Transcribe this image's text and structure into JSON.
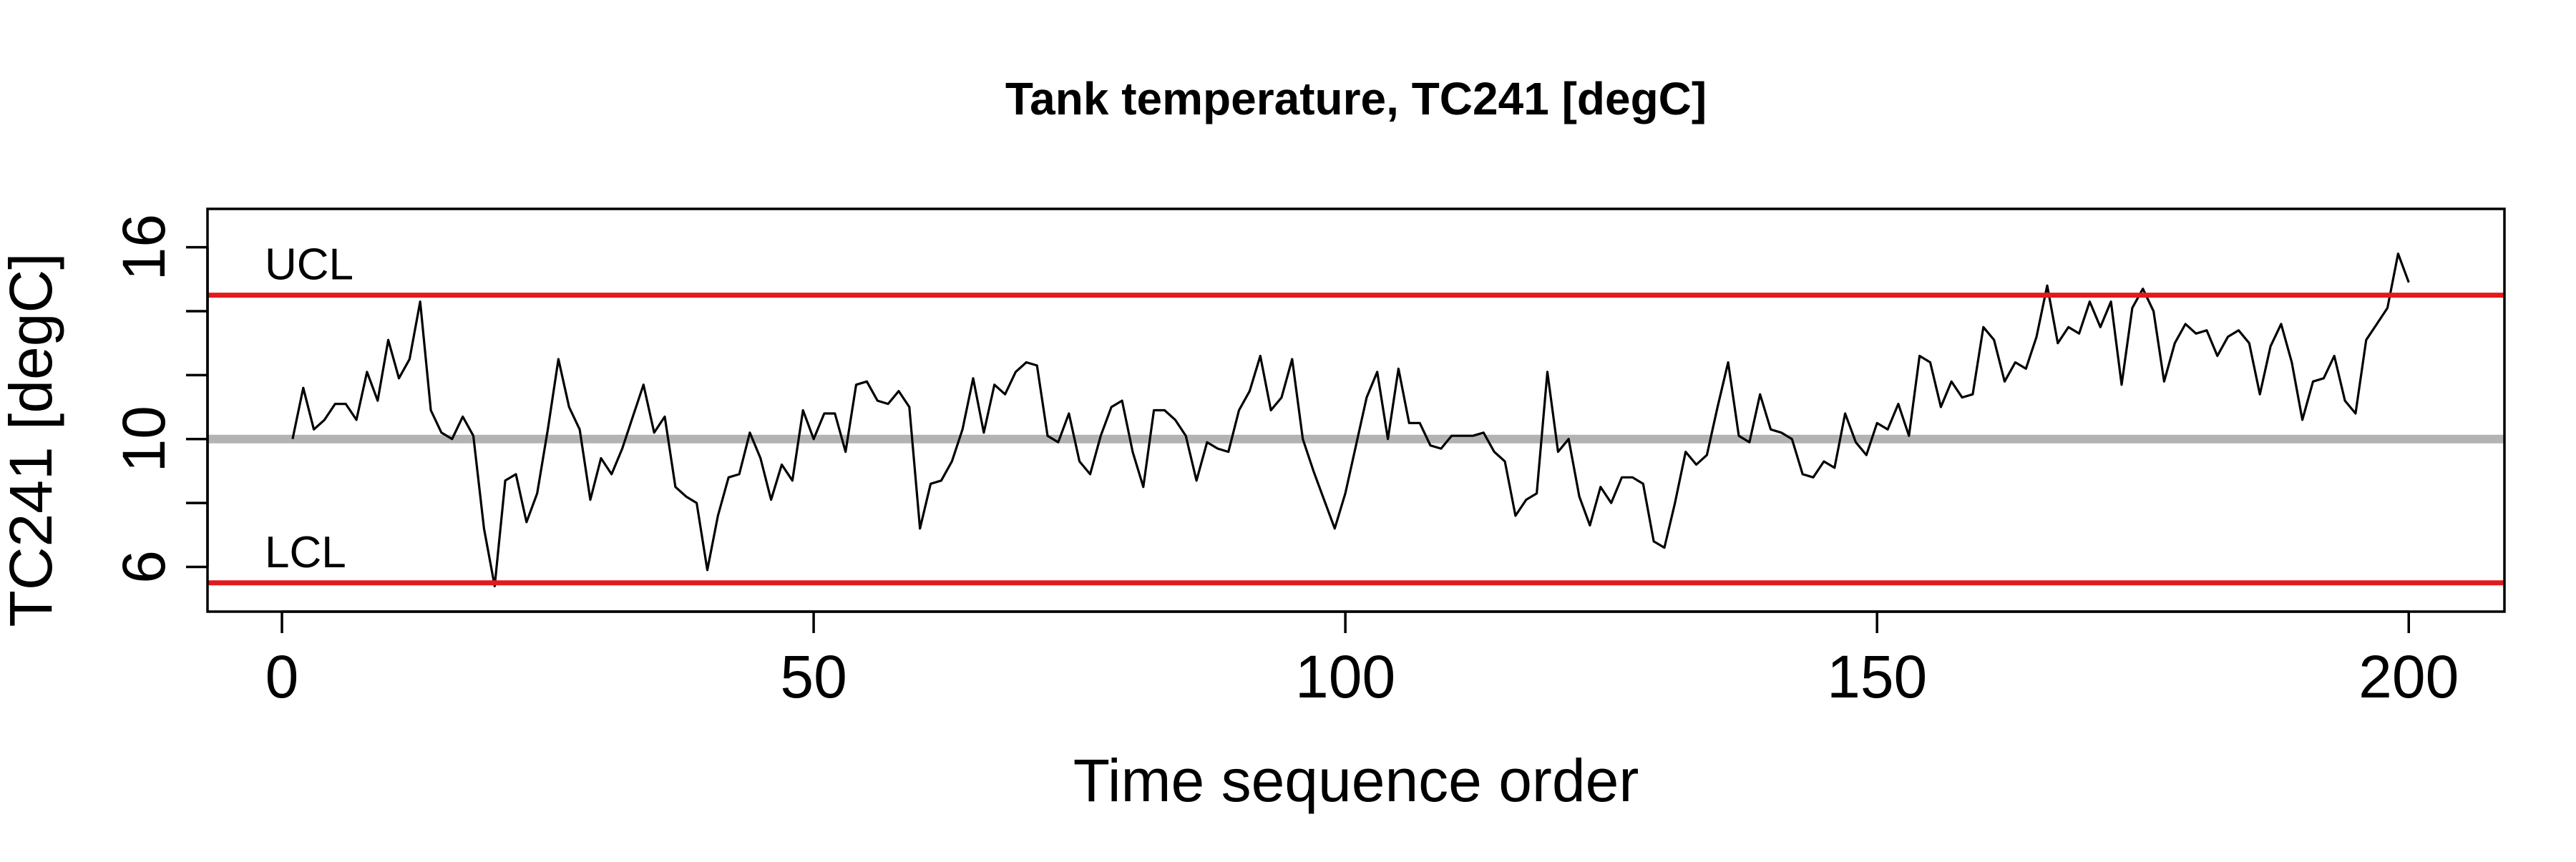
{
  "chart_data": {
    "type": "line",
    "title": "Tank temperature, TC241 [degC]",
    "xlabel": "Time sequence order",
    "ylabel": "TC241 [degC]",
    "xlim": [
      -7,
      209
    ],
    "ylim": [
      4.6,
      17.2
    ],
    "x_ticks": [
      0,
      50,
      100,
      150,
      200
    ],
    "y_ticks": [
      6,
      8,
      10,
      12,
      14,
      16
    ],
    "y_tick_labels": [
      {
        "value": 6,
        "label": "6"
      },
      {
        "value": 10,
        "label": "10"
      },
      {
        "value": 16,
        "label": "16"
      }
    ],
    "grid": false,
    "colors": {
      "series": "#000000",
      "limits": "#e31a1c",
      "center": "#b3b3b3"
    },
    "reference_lines": [
      {
        "id": "ucl",
        "label": "UCL",
        "value": 14.5,
        "color": "#e31a1c"
      },
      {
        "id": "center",
        "label": "",
        "value": 10.0,
        "color": "#b3b3b3"
      },
      {
        "id": "lcl",
        "label": "LCL",
        "value": 5.5,
        "color": "#e31a1c"
      }
    ],
    "series": [
      {
        "values": [
          10.0,
          11.6,
          10.3,
          10.6,
          11.1,
          11.1,
          10.6,
          12.1,
          11.2,
          13.1,
          11.9,
          12.5,
          14.3,
          10.9,
          10.2,
          10.0,
          10.7,
          10.1,
          7.2,
          5.4,
          8.7,
          8.9,
          7.4,
          8.3,
          10.3,
          12.5,
          11.0,
          10.3,
          8.1,
          9.4,
          8.9,
          9.7,
          10.7,
          11.7,
          10.2,
          10.7,
          8.5,
          8.2,
          8.0,
          5.9,
          7.6,
          8.8,
          8.9,
          10.2,
          9.4,
          8.1,
          9.2,
          8.7,
          10.9,
          10.0,
          10.8,
          10.8,
          9.6,
          11.7,
          11.8,
          11.2,
          11.1,
          11.5,
          11.0,
          7.2,
          8.6,
          8.7,
          9.3,
          10.3,
          11.9,
          10.2,
          11.7,
          11.4,
          12.1,
          12.4,
          12.3,
          10.1,
          9.9,
          10.8,
          9.3,
          8.9,
          10.1,
          11.0,
          11.2,
          9.6,
          8.5,
          10.9,
          10.9,
          10.6,
          10.1,
          8.7,
          9.9,
          9.7,
          9.6,
          10.9,
          11.5,
          12.6,
          10.9,
          11.3,
          12.5,
          10.0,
          9.0,
          8.1,
          7.2,
          8.3,
          9.8,
          11.3,
          12.1,
          10.0,
          12.2,
          10.5,
          10.5,
          9.8,
          9.7,
          10.1,
          10.1,
          10.1,
          10.2,
          9.6,
          9.3,
          7.6,
          8.1,
          8.3,
          12.1,
          9.6,
          10.0,
          8.2,
          7.3,
          8.5,
          8.0,
          8.8,
          8.8,
          8.6,
          6.8,
          6.6,
          8.0,
          9.6,
          9.2,
          9.5,
          11.0,
          12.4,
          10.1,
          9.9,
          11.4,
          10.3,
          10.2,
          10.0,
          8.9,
          8.8,
          9.3,
          9.1,
          10.8,
          9.9,
          9.5,
          10.5,
          10.3,
          11.1,
          10.1,
          12.6,
          12.4,
          11.0,
          11.8,
          11.3,
          11.4,
          13.5,
          13.1,
          11.8,
          12.4,
          12.2,
          13.2,
          14.8,
          13.0,
          13.5,
          13.3,
          14.3,
          13.5,
          14.3,
          11.7,
          14.1,
          14.7,
          14.0,
          11.8,
          13.0,
          13.6,
          13.3,
          13.4,
          12.6,
          13.2,
          13.4,
          13.0,
          11.4,
          12.9,
          13.6,
          12.4,
          10.6,
          11.8,
          11.9,
          12.6,
          11.2,
          10.8,
          13.1,
          13.6,
          14.1,
          15.8,
          14.9
        ]
      }
    ]
  }
}
